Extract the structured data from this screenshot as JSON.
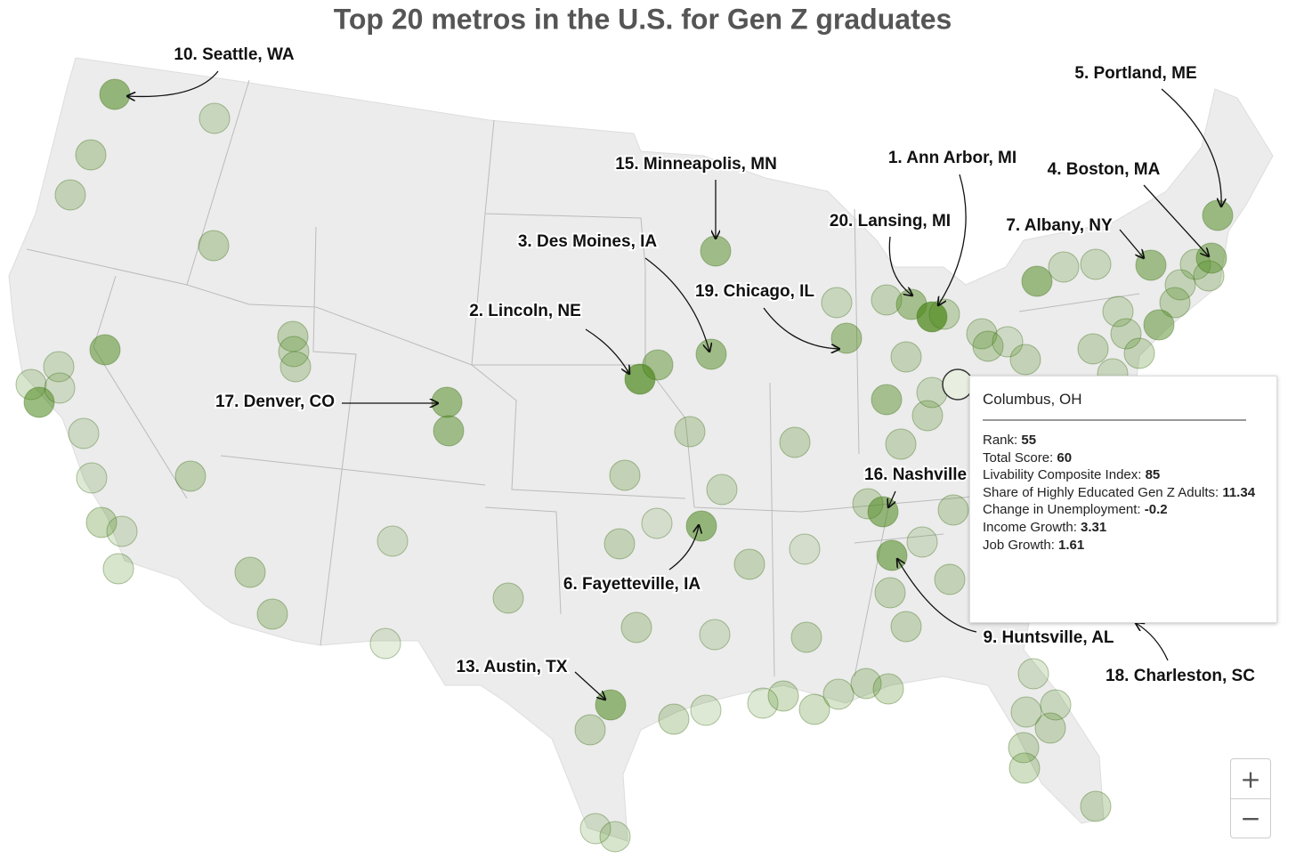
{
  "title": "Top 20 metros in the U.S. for Gen Z graduates",
  "labels": [
    "10. Seattle, WA",
    "5. Portland, ME",
    "15. Minneapolis, MN",
    "1. Ann Arbor, MI",
    "4. Boston, MA",
    "20. Lansing, MI",
    "7. Albany, NY",
    "3. Des Moines, IA",
    "19. Chicago, IL",
    "2. Lincoln, NE",
    "17. Denver, CO",
    "16. Nashville",
    "6. Fayetteville, IA",
    "9. Huntsville, AL",
    "13. Austin, TX",
    "18. Charleston, SC"
  ],
  "tooltip": {
    "title": "Columbus, OH",
    "rows": [
      {
        "label": "Rank:",
        "value": 55
      },
      {
        "label": "Total Score:",
        "value": 60
      },
      {
        "label": "Livability Composite Index:",
        "value": 85
      },
      {
        "label": "Share of Highly Educated Gen Z Adults:",
        "value": 11.34
      },
      {
        "label": "Change in Unemployment:",
        "value": -0.2
      },
      {
        "label": "Income Growth:",
        "value": 3.31
      },
      {
        "label": "Job Growth:",
        "value": 1.61
      }
    ]
  },
  "zoom": {
    "in": "+",
    "out": "−"
  }
}
